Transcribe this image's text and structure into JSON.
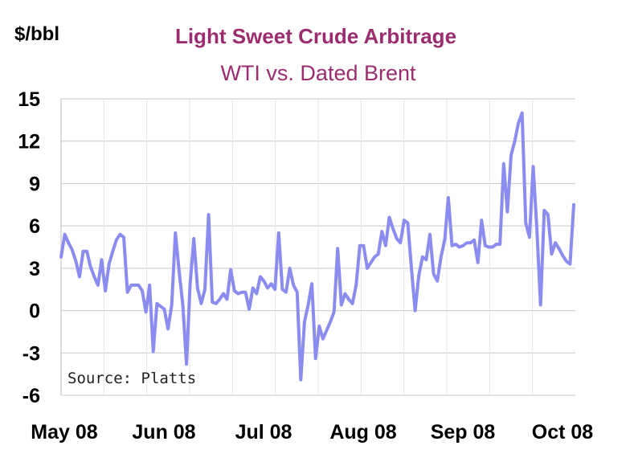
{
  "colors": {
    "title": "#9b2d6f",
    "line": "#8a8cf0",
    "grid": "#c8c8c8",
    "background": "#ffffff"
  },
  "chart_data": {
    "type": "line",
    "title": "Light Sweet Crude Arbitrage",
    "subtitle": "WTI vs. Dated Brent",
    "ylabel": "$/bbl",
    "xlabel": "",
    "ylim": [
      -6,
      15
    ],
    "yticks": [
      15,
      12,
      9,
      6,
      3,
      0,
      -3,
      -6
    ],
    "xticks": [
      "May 08",
      "Jun 08",
      "Jul 08",
      "Aug 08",
      "Sep 08",
      "Oct 08"
    ],
    "grid": true,
    "annotation": "Source: Platts",
    "series": [
      {
        "values": [
          3.8,
          5.4,
          4.8,
          4.3,
          3.5,
          2.4,
          4.2,
          4.2,
          3.1,
          2.4,
          1.8,
          3.6,
          1.4,
          3.3,
          4.2,
          5.0,
          5.4,
          5.2,
          1.3,
          1.8,
          1.8,
          1.8,
          1.4,
          -0.1,
          1.8,
          -2.9,
          0.5,
          0.3,
          0.1,
          -1.3,
          0.4,
          5.5,
          2.8,
          0.4,
          -3.8,
          1.9,
          5.1,
          1.6,
          0.5,
          1.5,
          6.8,
          0.6,
          0.5,
          0.8,
          1.2,
          0.8,
          2.9,
          1.4,
          1.2,
          1.3,
          1.3,
          0.1,
          1.6,
          1.2,
          2.4,
          2.1,
          1.6,
          1.9,
          1.5,
          5.5,
          1.5,
          1.3,
          3.0,
          1.8,
          1.3,
          -4.9,
          -0.8,
          0.4,
          1.9,
          -3.4,
          -1.1,
          -2.0,
          -1.4,
          -0.8,
          -0.1,
          4.4,
          0.4,
          1.2,
          0.8,
          0.5,
          1.8,
          4.6,
          4.6,
          3.0,
          3.4,
          3.8,
          4.0,
          5.6,
          4.6,
          6.6,
          5.8,
          5.1,
          4.8,
          6.4,
          6.2,
          3.0,
          0.0,
          2.5,
          3.8,
          3.6,
          5.4,
          2.6,
          2.1,
          3.8,
          5.0,
          8.0,
          4.6,
          4.7,
          4.5,
          4.6,
          4.8,
          4.8,
          5.0,
          3.4,
          6.4,
          4.6,
          4.5,
          4.5,
          4.7,
          4.7,
          10.4,
          7.0,
          11.0,
          12.0,
          13.3,
          14.0,
          6.2,
          5.2,
          10.2,
          5.8,
          0.4,
          7.1,
          6.8,
          4.0,
          4.8,
          4.4,
          3.9,
          3.5,
          3.3,
          7.5
        ]
      }
    ]
  }
}
